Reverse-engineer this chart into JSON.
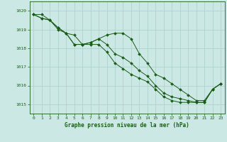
{
  "title": "Graphe pression niveau de la mer (hPa)",
  "xlabel_hours": [
    0,
    1,
    2,
    3,
    4,
    5,
    6,
    7,
    8,
    9,
    10,
    11,
    12,
    13,
    14,
    15,
    16,
    17,
    18,
    19,
    20,
    21,
    22,
    23
  ],
  "line1": [
    1019.8,
    1019.8,
    1019.5,
    1019.1,
    1018.8,
    1018.7,
    1018.2,
    1018.3,
    1018.5,
    1018.7,
    1018.8,
    1018.8,
    1018.5,
    1017.7,
    1017.2,
    1016.6,
    1016.4,
    1016.1,
    1015.8,
    1015.5,
    1015.2,
    1015.2,
    1015.8,
    1016.1
  ],
  "line2": [
    1019.8,
    1019.6,
    1019.5,
    1019.1,
    1018.8,
    1018.2,
    1018.2,
    1018.3,
    1018.5,
    1018.2,
    1017.7,
    1017.5,
    1017.2,
    1016.8,
    1016.5,
    1016.0,
    1015.6,
    1015.4,
    1015.3,
    1015.2,
    1015.1,
    1015.1,
    1015.8,
    1016.1
  ],
  "line3": [
    1019.8,
    1019.6,
    1019.5,
    1019.0,
    1018.8,
    1018.2,
    1018.2,
    1018.2,
    1018.2,
    1017.8,
    1017.2,
    1016.9,
    1016.6,
    1016.4,
    1016.2,
    1015.8,
    1015.4,
    1015.2,
    1015.1,
    1015.1,
    1015.1,
    1015.1,
    1015.8,
    1016.1
  ],
  "line_color": "#1a5c1a",
  "marker": "D",
  "marker_size": 2.0,
  "bg_color": "#cce8e4",
  "grid_color": "#aacfcb",
  "axis_color": "#1a5c1a",
  "text_color": "#1a5c1a",
  "ylim": [
    1014.5,
    1020.5
  ],
  "yticks": [
    1015,
    1016,
    1017,
    1018,
    1019,
    1020
  ],
  "xticks": [
    0,
    1,
    2,
    3,
    4,
    5,
    6,
    7,
    8,
    9,
    10,
    11,
    12,
    13,
    14,
    15,
    16,
    17,
    18,
    19,
    20,
    21,
    22,
    23
  ],
  "linewidth": 0.7,
  "tick_fontsize": 4.5,
  "label_fontsize": 5.5
}
